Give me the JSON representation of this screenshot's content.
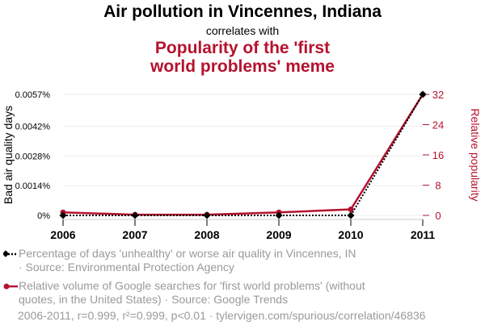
{
  "title": "Air pollution in Vincennes, Indiana",
  "correlates_text": "correlates with",
  "subtitle_line1": "Popularity of the 'first",
  "subtitle_line2": "world problems' meme",
  "colors": {
    "series1": "#000000",
    "series2": "#b5122e",
    "grid": "#ececec"
  },
  "chart_data": {
    "type": "line",
    "x": [
      2006,
      2007,
      2008,
      2009,
      2010,
      2011
    ],
    "series": [
      {
        "name": "Bad air quality days",
        "axis": "left",
        "values": [
          0.0,
          0.0,
          0.0,
          0.0,
          0.0,
          0.0057
        ]
      },
      {
        "name": "Relative popularity",
        "axis": "right",
        "values": [
          0.8,
          0.2,
          0.2,
          0.8,
          1.6,
          32
        ]
      }
    ],
    "ylabel_left": "Bad air quality days",
    "ylabel_right": "Relative popularity",
    "ylim_left": [
      0,
      0.0057
    ],
    "ylim_right": [
      0,
      32
    ],
    "left_ticks": [
      {
        "value": 0,
        "label": "0%"
      },
      {
        "value": 0.0014,
        "label": "0.0014%"
      },
      {
        "value": 0.0028,
        "label": "0.0028%"
      },
      {
        "value": 0.0042,
        "label": "0.0042%"
      },
      {
        "value": 0.0057,
        "label": "0.0057%"
      }
    ],
    "right_ticks": [
      {
        "value": 0,
        "label": "0"
      },
      {
        "value": 8,
        "label": "8"
      },
      {
        "value": 16,
        "label": "16"
      },
      {
        "value": 24,
        "label": "24"
      },
      {
        "value": 32,
        "label": "32"
      }
    ],
    "xticks": [
      "2006",
      "2007",
      "2008",
      "2009",
      "2010",
      "2011"
    ]
  },
  "legend": {
    "series1_line1": "Percentage of days 'unhealthy' or worse air quality in Vincennes, IN",
    "series1_line2": "· Source: Environmental Protection Agency",
    "series2_line1": "Relative volume of Google searches for 'first world problems' (without",
    "series2_line2": "quotes, in the United States) · Source: Google Trends"
  },
  "footer": "2006-2011, r=0.999, r²=0.999, p<0.01 · tylervigen.com/spurious/correlation/46836"
}
